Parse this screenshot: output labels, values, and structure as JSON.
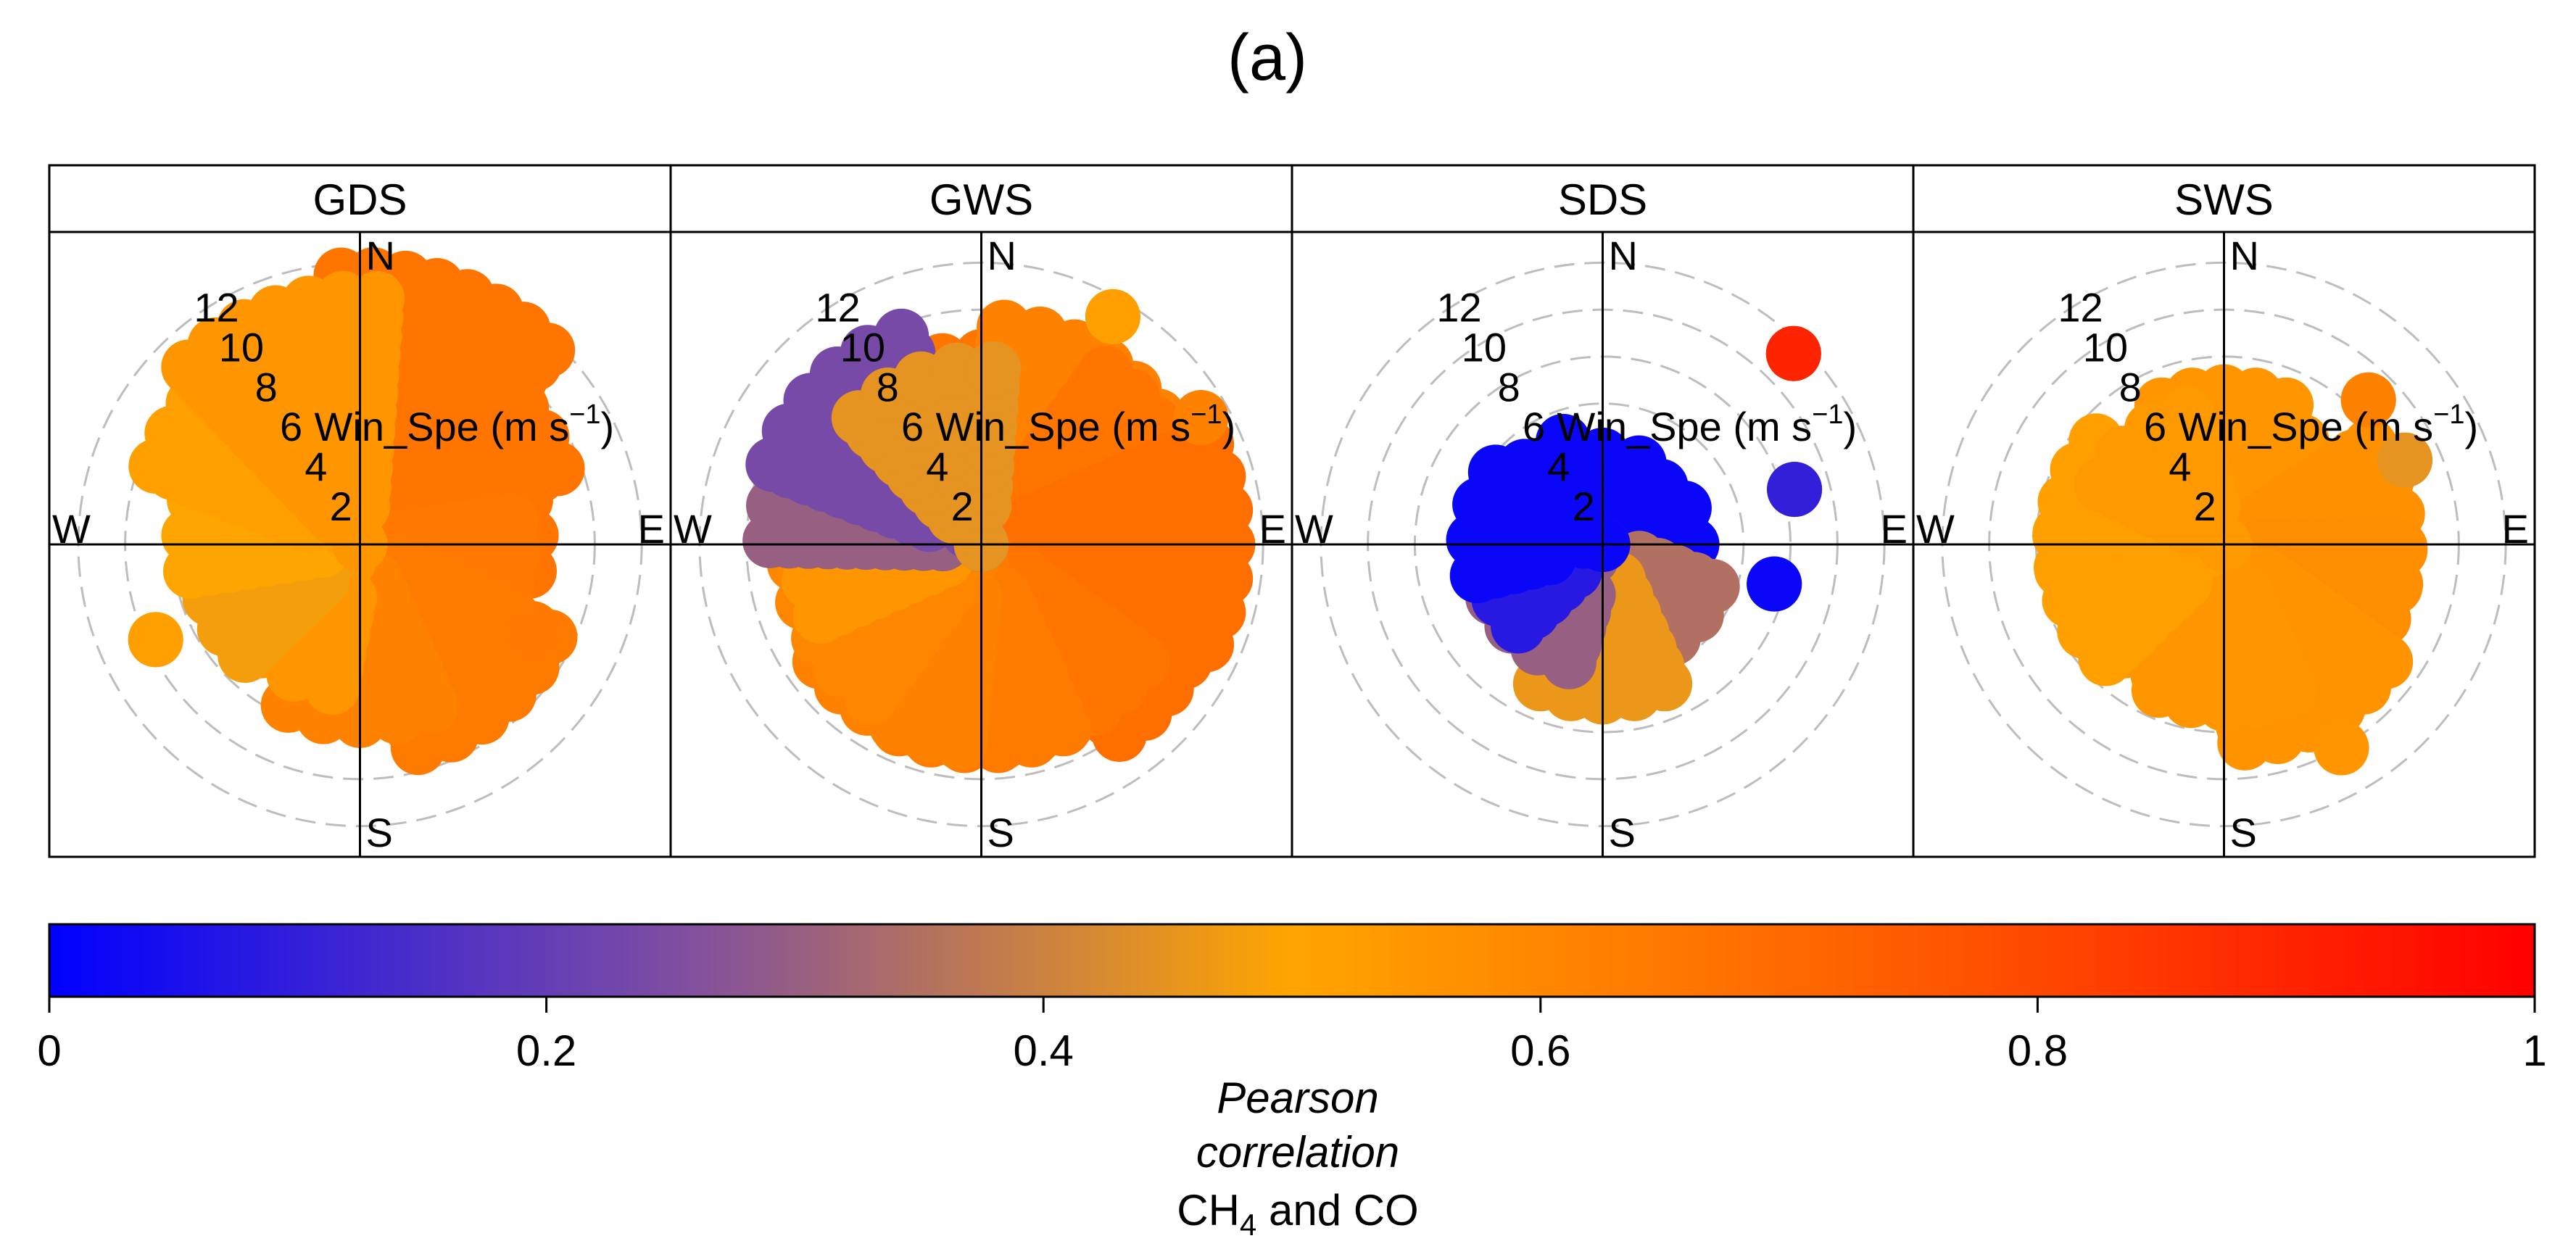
{
  "figure": {
    "label": "(a)"
  },
  "chart_data": {
    "type": "polar_annulus_facets",
    "title": "(a)",
    "radial_axis_label": "Win_Spe (m s",
    "radial_axis_unit_sup": "−1",
    "radial_axis_unit_close": ")",
    "radial_ticks": [
      2,
      4,
      6,
      8,
      10,
      12
    ],
    "radial_range": [
      0,
      13
    ],
    "compass_labels": [
      "N",
      "E",
      "S",
      "W"
    ],
    "gridlines": "dashed circles",
    "panels": [
      {
        "name": "GDS",
        "clusters": [
          {
            "dir": 0,
            "r_min": 0,
            "r_max": 7.8,
            "value": 0.64
          },
          {
            "dir": 20,
            "r_min": 0,
            "r_max": 11.5,
            "value": 0.66
          },
          {
            "dir": 45,
            "r_min": 0,
            "r_max": 9.0,
            "value": 0.66
          },
          {
            "dir": 75,
            "r_min": 0,
            "r_max": 7.3,
            "value": 0.66
          },
          {
            "dir": 105,
            "r_min": 0,
            "r_max": 6.5,
            "value": 0.65
          },
          {
            "dir": 140,
            "r_min": 0,
            "r_max": 9.0,
            "value": 0.64
          },
          {
            "dir": 180,
            "r_min": 0,
            "r_max": 7.5,
            "value": 0.62
          },
          {
            "dir": 215,
            "r_min": 0,
            "r_max": 6.2,
            "value": 0.55
          },
          {
            "dir": 250,
            "r_min": 0,
            "r_max": 6.8,
            "value": 0.48
          },
          {
            "dir": 285,
            "r_min": 0,
            "r_max": 7.3,
            "value": 0.5
          },
          {
            "dir": 315,
            "r_min": 0,
            "r_max": 9.3,
            "value": 0.52
          },
          {
            "dir": 340,
            "r_min": 0,
            "r_max": 10.5,
            "value": 0.55
          },
          {
            "dir": 117,
            "r_min": 8.3,
            "r_max": 8.3,
            "value": 0.65
          },
          {
            "dir": 245,
            "r_min": 9.6,
            "r_max": 9.6,
            "value": 0.52
          }
        ]
      },
      {
        "name": "GWS",
        "clusters": [
          {
            "dir": 0,
            "r_min": 0,
            "r_max": 8.0,
            "value": 0.66
          },
          {
            "dir": 30,
            "r_min": 0,
            "r_max": 9.3,
            "value": 0.62
          },
          {
            "dir": 60,
            "r_min": 0,
            "r_max": 9.0,
            "value": 0.66
          },
          {
            "dir": 90,
            "r_min": 0,
            "r_max": 10.5,
            "value": 0.68
          },
          {
            "dir": 120,
            "r_min": 0,
            "r_max": 10.0,
            "value": 0.68
          },
          {
            "dir": 150,
            "r_min": 0,
            "r_max": 8.5,
            "value": 0.66
          },
          {
            "dir": 180,
            "r_min": 0,
            "r_max": 8.6,
            "value": 0.64
          },
          {
            "dir": 210,
            "r_min": 0,
            "r_max": 8.5,
            "value": 0.62
          },
          {
            "dir": 240,
            "r_min": 0,
            "r_max": 8.0,
            "value": 0.6
          },
          {
            "dir": 270,
            "r_min": 0,
            "r_max": 7.5,
            "value": 0.55
          },
          {
            "dir": 295,
            "r_min": 0,
            "r_max": 9.0,
            "value": 0.3
          },
          {
            "dir": 315,
            "r_min": 0,
            "r_max": 9.5,
            "value": 0.24
          },
          {
            "dir": 340,
            "r_min": 0,
            "r_max": 7.5,
            "value": 0.45
          },
          {
            "dir": 30,
            "r_min": 11.2,
            "r_max": 11.2,
            "value": 0.52
          },
          {
            "dir": 60,
            "r_min": 10.8,
            "r_max": 10.8,
            "value": 0.62
          }
        ]
      },
      {
        "name": "SDS",
        "clusters": [
          {
            "dir": 0,
            "r_min": 0,
            "r_max": 3.8,
            "value": 0.02
          },
          {
            "dir": 45,
            "r_min": 0,
            "r_max": 3.5,
            "value": 0.02
          },
          {
            "dir": 90,
            "r_min": 0,
            "r_max": 3.8,
            "value": 0.02
          },
          {
            "dir": 135,
            "r_min": 0,
            "r_max": 5.0,
            "value": 0.35
          },
          {
            "dir": 180,
            "r_min": 0,
            "r_max": 6.5,
            "value": 0.46
          },
          {
            "dir": 220,
            "r_min": 0,
            "r_max": 5.2,
            "value": 0.3
          },
          {
            "dir": 250,
            "r_min": 0,
            "r_max": 5.0,
            "value": 0.08
          },
          {
            "dir": 280,
            "r_min": 0,
            "r_max": 5.5,
            "value": 0.02
          },
          {
            "dir": 315,
            "r_min": 0,
            "r_max": 4.7,
            "value": 0.02
          },
          {
            "dir": 45,
            "r_min": 11.5,
            "r_max": 11.5,
            "value": 0.9
          },
          {
            "dir": 74,
            "r_min": 8.5,
            "r_max": 8.5,
            "value": 0.1
          },
          {
            "dir": 103,
            "r_min": 7.5,
            "r_max": 7.5,
            "value": 0.02
          }
        ]
      },
      {
        "name": "SWS",
        "clusters": [
          {
            "dir": 0,
            "r_min": 0,
            "r_max": 6.5,
            "value": 0.55
          },
          {
            "dir": 45,
            "r_min": 0,
            "r_max": 5.5,
            "value": 0.55
          },
          {
            "dir": 80,
            "r_min": 0,
            "r_max": 7.5,
            "value": 0.57
          },
          {
            "dir": 115,
            "r_min": 0,
            "r_max": 7.5,
            "value": 0.58
          },
          {
            "dir": 150,
            "r_min": 0,
            "r_max": 8.5,
            "value": 0.56
          },
          {
            "dir": 180,
            "r_min": 0,
            "r_max": 6.8,
            "value": 0.55
          },
          {
            "dir": 215,
            "r_min": 0,
            "r_max": 6.2,
            "value": 0.55
          },
          {
            "dir": 250,
            "r_min": 0,
            "r_max": 7.0,
            "value": 0.52
          },
          {
            "dir": 285,
            "r_min": 0,
            "r_max": 7.0,
            "value": 0.52
          },
          {
            "dir": 320,
            "r_min": 0,
            "r_max": 5.8,
            "value": 0.54
          },
          {
            "dir": 150,
            "r_min": 10.0,
            "r_max": 10.0,
            "value": 0.55
          },
          {
            "dir": 45,
            "r_min": 8.7,
            "r_max": 8.7,
            "value": 0.62
          },
          {
            "dir": 65,
            "r_min": 8.5,
            "r_max": 8.5,
            "value": 0.45
          }
        ]
      }
    ],
    "colorbar": {
      "label_line1": "Pearson",
      "label_line2": "correlation",
      "species_prefix": "CH",
      "species_sub": "4",
      "species_suffix": " and CO",
      "range": [
        0,
        1
      ],
      "ticks": [
        0,
        0.2,
        0.4,
        0.6,
        0.8,
        1
      ],
      "tick_labels": [
        "0",
        "0.2",
        "0.4",
        "0.6",
        "0.8",
        "1"
      ],
      "colors": [
        "#0000ff",
        "#7d4da3",
        "#ffa500",
        "#ff5a00",
        "#ff0000"
      ],
      "stops": [
        0,
        0.25,
        0.5,
        0.75,
        1
      ]
    }
  }
}
